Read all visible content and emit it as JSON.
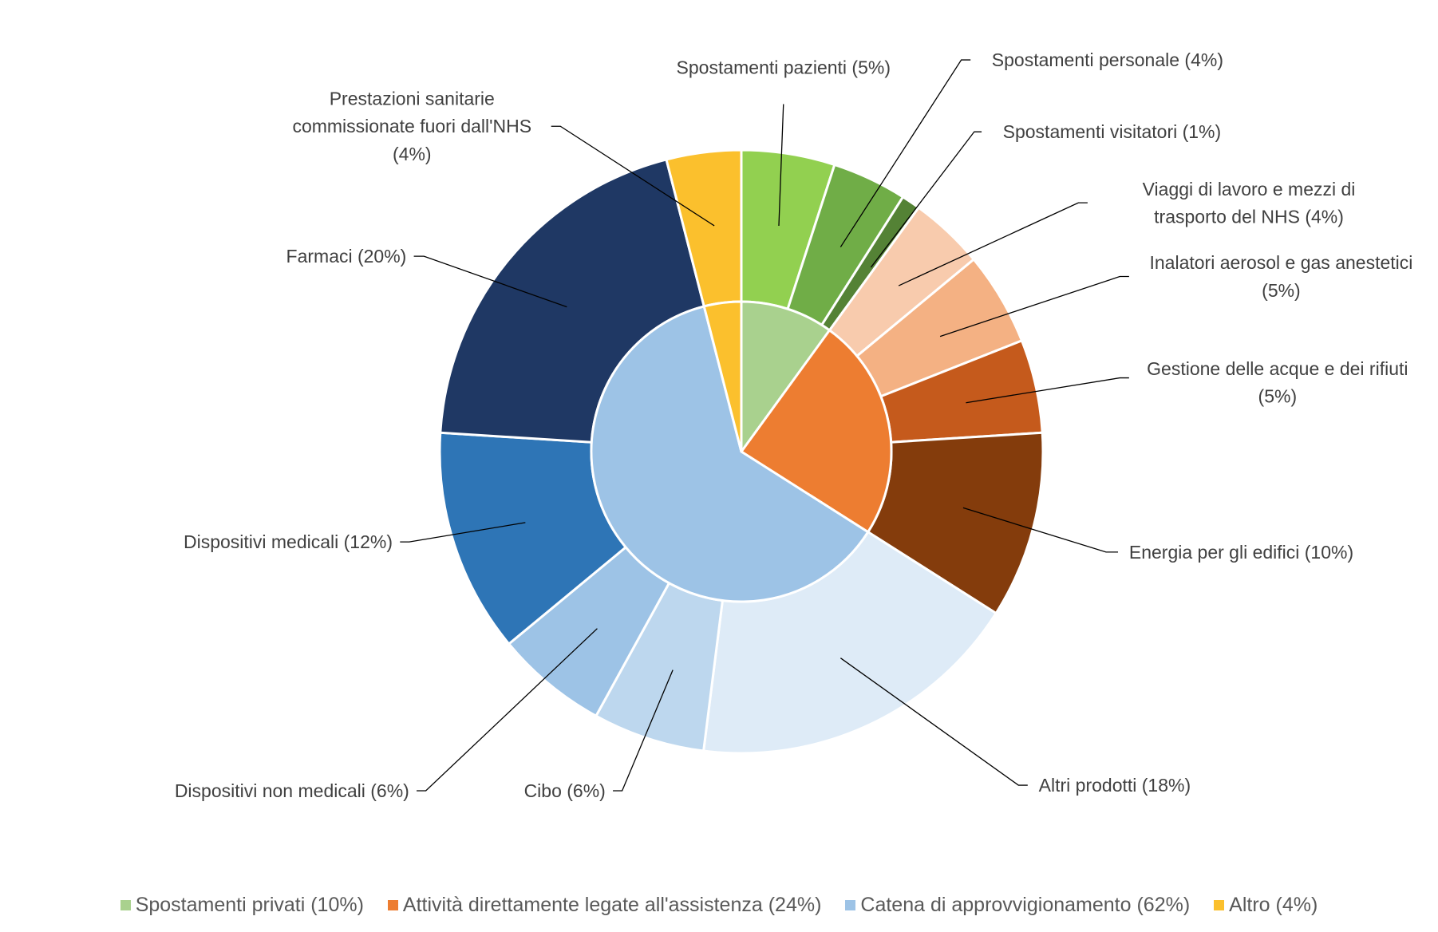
{
  "chart_data": {
    "type": "pie",
    "subtype": "nested-donut",
    "start": "top",
    "direction": "clockwise",
    "inner_ring": [
      {
        "name": "Spostamenti privati (10%)",
        "value": 10,
        "color": "#A9D18E"
      },
      {
        "name": "Attività direttamente legate all'assistenza (24%)",
        "value": 24,
        "color": "#ED7D31"
      },
      {
        "name": "Catena di approvvigionamento (62%)",
        "value": 62,
        "color": "#9DC3E6"
      },
      {
        "name": "Altro (4%)",
        "value": 4,
        "color": "#FBC02D"
      }
    ],
    "outer_ring": [
      {
        "label_lines": [
          "Spostamenti pazienti (5%)"
        ],
        "value": 5,
        "color": "#92D050"
      },
      {
        "label_lines": [
          "Spostamenti personale (4%)"
        ],
        "value": 4,
        "color": "#70AD47"
      },
      {
        "label_lines": [
          "Spostamenti visitatori (1%)"
        ],
        "value": 1,
        "color": "#548235"
      },
      {
        "label_lines": [
          "Viaggi di lavoro e mezzi di",
          "trasporto del NHS (4%)"
        ],
        "value": 4,
        "color": "#F8CBAD"
      },
      {
        "label_lines": [
          "Inalatori aerosol e gas anestetici",
          "(5%)"
        ],
        "value": 5,
        "color": "#F4B183"
      },
      {
        "label_lines": [
          "Gestione delle acque e dei rifiuti",
          "(5%)"
        ],
        "value": 5,
        "color": "#C55A1C"
      },
      {
        "label_lines": [
          "Energia per gli edifici (10%)"
        ],
        "value": 10,
        "color": "#843C0C"
      },
      {
        "label_lines": [
          "Altri prodotti (18%)"
        ],
        "value": 18,
        "color": "#DEEBF7"
      },
      {
        "label_lines": [
          "Cibo (6%)"
        ],
        "value": 6,
        "color": "#BDD7EE"
      },
      {
        "label_lines": [
          "Dispositivi non medicali (6%)"
        ],
        "value": 6,
        "color": "#9DC3E6"
      },
      {
        "label_lines": [
          "Dispositivi medicali (12%)"
        ],
        "value": 12,
        "color": "#2E75B6"
      },
      {
        "label_lines": [
          "Farmaci (20%)"
        ],
        "value": 20,
        "color": "#1F3864"
      },
      {
        "label_lines": [
          "Prestazioni sanitarie",
          "commissionate fuori dall'NHS",
          "(4%)"
        ],
        "value": 4,
        "color": "#FBC02D"
      }
    ],
    "legend_position": "bottom"
  }
}
